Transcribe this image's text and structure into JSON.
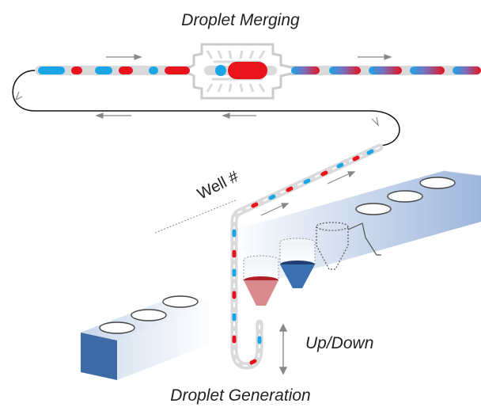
{
  "labels": {
    "top": "Droplet Merging",
    "bottom": "Droplet Generation",
    "updown": "Up/Down",
    "well": "Well #"
  },
  "colors": {
    "red_droplet": "#e8131b",
    "blue_droplet": "#1aa6e6",
    "tube": "#d9dadc",
    "well_block": "#3e6aa6",
    "red_sample": "#c8343c",
    "blue_sample": "#3a6fb0"
  },
  "icons": {
    "merger": "droplet-merger-chip",
    "funnel": "sample-well-funnel"
  }
}
